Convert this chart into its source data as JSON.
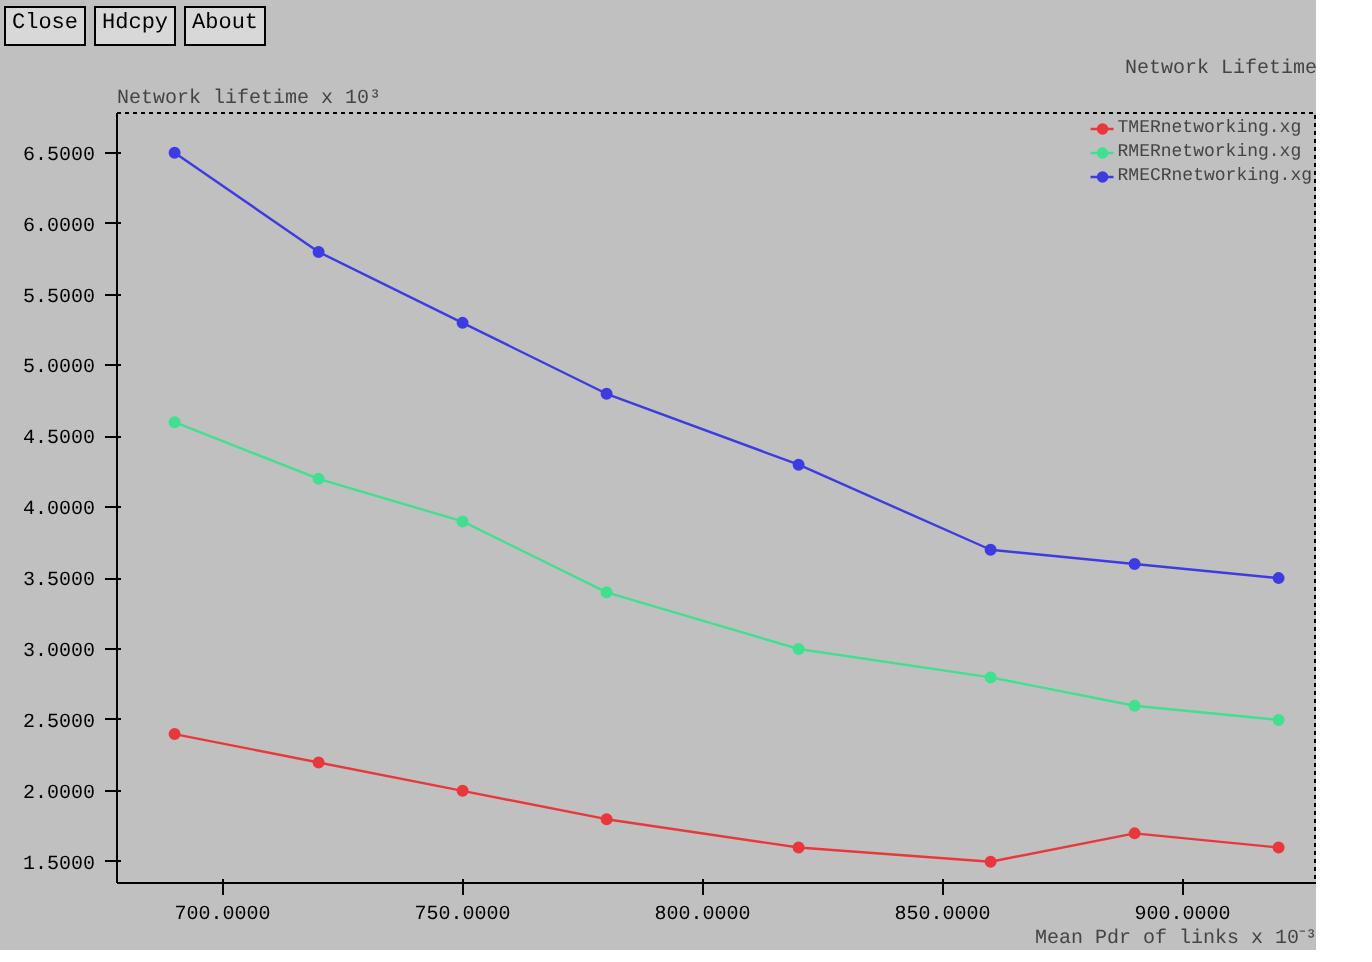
{
  "chart_data": {
    "type": "line",
    "title": "Network Lifetime",
    "xlabel": "Mean Pdr of links x 10⁻³",
    "ylabel": "Network lifetime x 10³",
    "annotations": [
      "Close",
      "Hdcpy",
      "About"
    ],
    "x": [
      690,
      720,
      750,
      780,
      820,
      860,
      890,
      920
    ],
    "series": [
      {
        "name": "TMERnetworking.xg",
        "color": "#e8383c",
        "values": [
          2.4,
          2.2,
          2.0,
          1.8,
          1.6,
          1.5,
          1.7,
          1.6
        ]
      },
      {
        "name": "RMERnetworking.xg",
        "color": "#40e090",
        "values": [
          4.6,
          4.2,
          3.9,
          3.4,
          3.0,
          2.8,
          2.6,
          2.5
        ]
      },
      {
        "name": "RMECRnetworking.xg",
        "color": "#3c3ce0",
        "values": [
          6.5,
          5.8,
          5.3,
          4.8,
          4.3,
          3.7,
          3.6,
          3.5
        ]
      }
    ],
    "xlim": [
      678,
      928
    ],
    "ylim": [
      1.35,
      6.78
    ],
    "xticks": [
      {
        "value": 700,
        "label": "700.0000"
      },
      {
        "value": 750,
        "label": "750.0000"
      },
      {
        "value": 800,
        "label": "800.0000"
      },
      {
        "value": 850,
        "label": "850.0000"
      },
      {
        "value": 900,
        "label": "900.0000"
      }
    ],
    "yticks": [
      {
        "value": 1.5,
        "label": "1.5000"
      },
      {
        "value": 2.0,
        "label": "2.0000"
      },
      {
        "value": 2.5,
        "label": "2.5000"
      },
      {
        "value": 3.0,
        "label": "3.0000"
      },
      {
        "value": 3.5,
        "label": "3.5000"
      },
      {
        "value": 4.0,
        "label": "4.0000"
      },
      {
        "value": 4.5,
        "label": "4.5000"
      },
      {
        "value": 5.0,
        "label": "5.0000"
      },
      {
        "value": 5.5,
        "label": "5.5000"
      },
      {
        "value": 6.0,
        "label": "6.0000"
      },
      {
        "value": 6.5,
        "label": "6.5000"
      }
    ],
    "grid": false,
    "legend": "top right",
    "marker": "circle",
    "line_style": "solid"
  }
}
